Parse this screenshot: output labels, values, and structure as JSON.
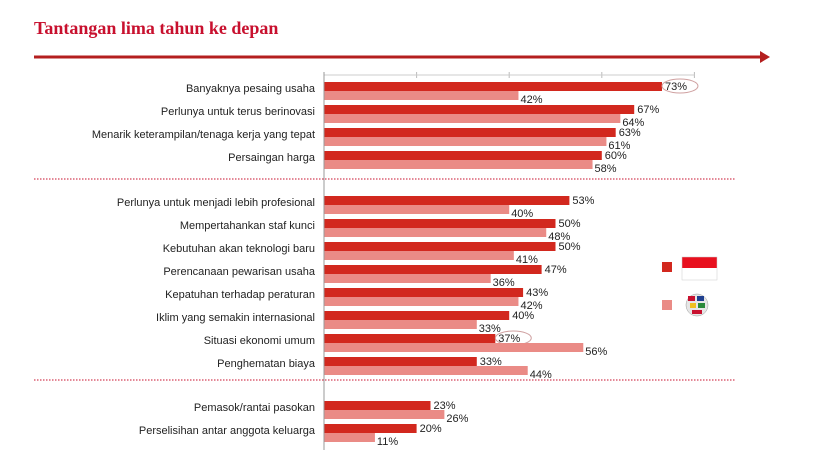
{
  "title": "Tantangan lima tahun ke depan",
  "chart_data": {
    "type": "bar",
    "orientation": "horizontal",
    "title": "Tantangan lima tahun ke depan",
    "xlim": [
      0,
      80
    ],
    "grid": false,
    "legend_position": "right",
    "categories": [
      "Banyaknya pesaing usaha",
      "Perlunya untuk terus berinovasi",
      "Menarik keterampilan/tenaga kerja yang tepat",
      "Persaingan harga",
      "Perlunya untuk menjadi lebih profesional",
      "Mempertahankan staf kunci",
      "Kebutuhan akan teknologi baru",
      "Perencanaan pewarisan usaha",
      "Kepatuhan terhadap peraturan",
      "Iklim yang semakin internasional",
      "Situasi ekonomi umum",
      "Penghematan biaya",
      "Pemasok/rantai pasokan",
      "Perselisihan antar anggota keluarga"
    ],
    "groups": [
      [
        0,
        1,
        2,
        3
      ],
      [
        4,
        5,
        6,
        7,
        8,
        9,
        10,
        11
      ],
      [
        12,
        13
      ]
    ],
    "highlighted": [
      {
        "series": 0,
        "category": 0
      },
      {
        "series": 0,
        "category": 10
      }
    ],
    "series": [
      {
        "name": "Indonesia",
        "legend_icon": "indonesia-flag-icon",
        "color": "#d2281e",
        "values": [
          73,
          67,
          63,
          60,
          53,
          50,
          50,
          47,
          43,
          40,
          37,
          33,
          23,
          20
        ],
        "labels": [
          "73%",
          "67%",
          "63%",
          "60%",
          "53%",
          "50%",
          "50%",
          "47%",
          "43%",
          "40%",
          "37%",
          "33%",
          "23%",
          "20%"
        ]
      },
      {
        "name": "Global",
        "legend_icon": "globe-flags-icon",
        "color": "#ea8b86",
        "values": [
          42,
          64,
          61,
          58,
          40,
          48,
          41,
          36,
          42,
          33,
          56,
          44,
          26,
          11
        ],
        "labels": [
          "42%",
          "64%",
          "61%",
          "58%",
          "40%",
          "48%",
          "41%",
          "36%",
          "42%",
          "33%",
          "56%",
          "44%",
          "26%",
          "11%"
        ]
      }
    ]
  }
}
